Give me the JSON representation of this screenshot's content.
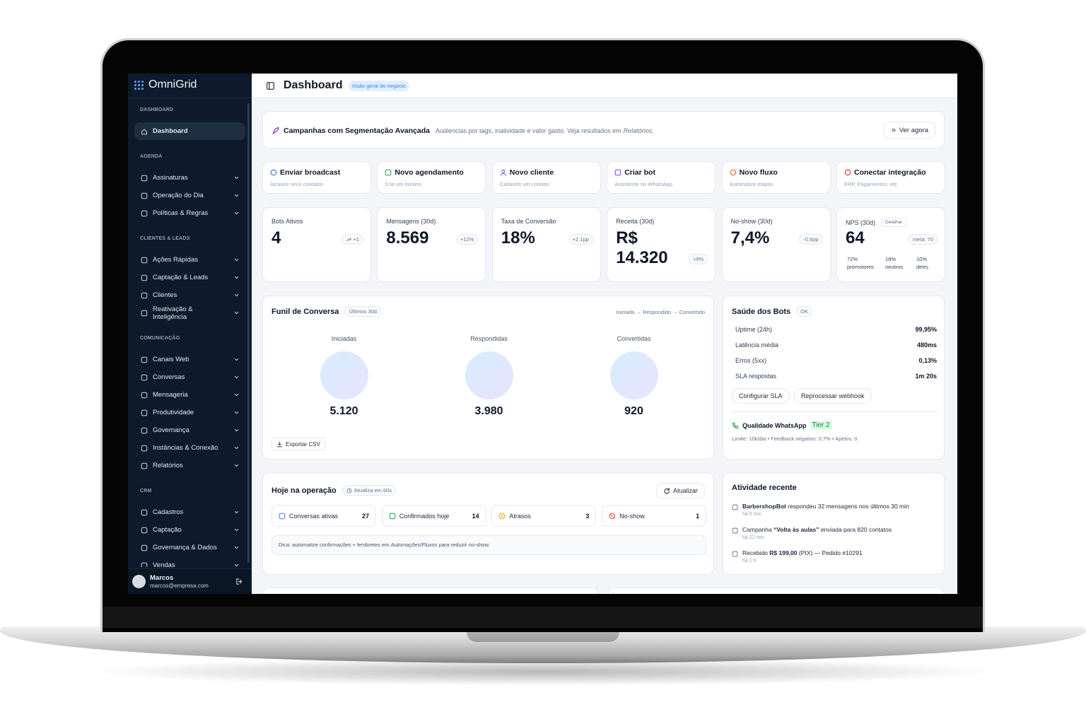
{
  "sidebar": {
    "brand": "OmniGrid",
    "sections": [
      {
        "title": "DASHBOARD",
        "items": [
          "Dashboard"
        ]
      },
      {
        "title": "AGENDA",
        "items": [
          "Assinaturas",
          "Operação do Dia",
          "Políticas & Regras"
        ]
      },
      {
        "title": "CLIENTES & LEADS",
        "items": [
          "Ações Rápidas",
          "Captação & Leads",
          "Clientes",
          "Reativação & Inteligência"
        ]
      },
      {
        "title": "COMUNICAÇÃO",
        "items": [
          "Canais Web",
          "Conversas",
          "Mensageria",
          "Produtividade",
          "Governança",
          "Instâncias & Conexão",
          "Relatórios"
        ]
      },
      {
        "title": "CRM",
        "items": [
          "Cadastros",
          "Captação",
          "Governança & Dados",
          "Vendas"
        ]
      }
    ],
    "user": {
      "name": "Marcos",
      "email": "marcos@empresa.com"
    }
  },
  "header": {
    "title": "Dashboard",
    "badge": "Visão geral do negócio"
  },
  "banner": {
    "title": "Campanhas com Segmentação Avançada",
    "text": "Audiencias por tags, inatividade e valor gasto. Veja resultados em",
    "link": "Relatórios.",
    "button": "Ver agora"
  },
  "actions": [
    {
      "title": "Enviar broadcast",
      "subtitle": "Alcance seus contatos"
    },
    {
      "title": "Novo agendamento",
      "subtitle": "Crie um horário"
    },
    {
      "title": "Novo cliente",
      "subtitle": "Cadastre um contato"
    },
    {
      "title": "Criar bot",
      "subtitle": "Assistente no WhatsApp"
    },
    {
      "title": "Novo fluxo",
      "subtitle": "Automatize etapas"
    },
    {
      "title": "Conectar integração",
      "subtitle": "ERP, Pagamentos, etc."
    }
  ],
  "kpis": [
    {
      "label": "Bots Ativos",
      "value": "4",
      "delta": "+1"
    },
    {
      "label": "Mensagens (30d)",
      "value": "8.569",
      "delta": "+12%"
    },
    {
      "label": "Taxa de Conversão",
      "value": "18%",
      "delta": "+2.1pp"
    },
    {
      "label": "Receita (30d)",
      "value": "R$ 14.320",
      "delta": "+9%"
    },
    {
      "label": "No-show (30d)",
      "value": "7,4%",
      "delta": "-0,6pp"
    },
    {
      "label": "NPS (30d)",
      "value": "64",
      "delta": "meta: 70",
      "button": "Detalhar",
      "breakdown": [
        {
          "value": "72%",
          "label": "promotores"
        },
        {
          "value": "18%",
          "label": "neutros"
        },
        {
          "value": "10%",
          "label": "detrs."
        }
      ]
    }
  ],
  "funnel": {
    "title": "Funil de Conversa",
    "badge": "Últimos 30d",
    "path": "Iniciada → Respondido → Convertido",
    "stages": [
      {
        "label": "Iniciadas",
        "value": "5.120"
      },
      {
        "label": "Respondidas",
        "value": "3.980"
      },
      {
        "label": "Convertidas",
        "value": "920"
      }
    ],
    "button": "Exportar CSV"
  },
  "health": {
    "title": "Saúde dos Bots",
    "badge": "OK",
    "rows": [
      {
        "label": "Uptime (24h)",
        "value": "99,95%"
      },
      {
        "label": "Latência média",
        "value": "480ms"
      },
      {
        "label": "Erros (5xx)",
        "value": "0,13%"
      },
      {
        "label": "SLA respostas",
        "value": "1m 20s"
      }
    ],
    "buttons": [
      "Configurar SLA",
      "Reprocessar webhook"
    ],
    "quality": "Qualidade WhatsApp",
    "tier": "Tier 2",
    "note": "Limite: 10k/dia • Feedback negativo: 0,7% • Apelos: 0"
  },
  "today": {
    "title": "Hoje na operação",
    "badge": "Atualiza em 60s",
    "button": "Atualizar",
    "stats": [
      {
        "label": "Conversas ativas",
        "value": "27"
      },
      {
        "label": "Confirmados hoje",
        "value": "14"
      },
      {
        "label": "Atrasos",
        "value": "3"
      },
      {
        "label": "No-show",
        "value": "1"
      }
    ],
    "tip": {
      "pre": "Dica: automatize confirmações + lembretes em ",
      "em": "Automações/Fluxos",
      "post": " para reduzir no-show."
    }
  },
  "activity": {
    "title": "Atividade recente",
    "items": [
      {
        "bold": "BarbershopBot",
        "post": " respondeu 32 mensagens nos últimos 30 min",
        "time": "há 5 min"
      },
      {
        "pre": "Campanha ",
        "bold": "“Volta às aulas”",
        "post": " enviada para 820 contatos",
        "time": "há 22 min"
      },
      {
        "pre": "Recebido ",
        "bold": "R$ 199,00",
        "post": " (PIX) — Pedido #10291",
        "time": "há 1 h"
      }
    ]
  }
}
